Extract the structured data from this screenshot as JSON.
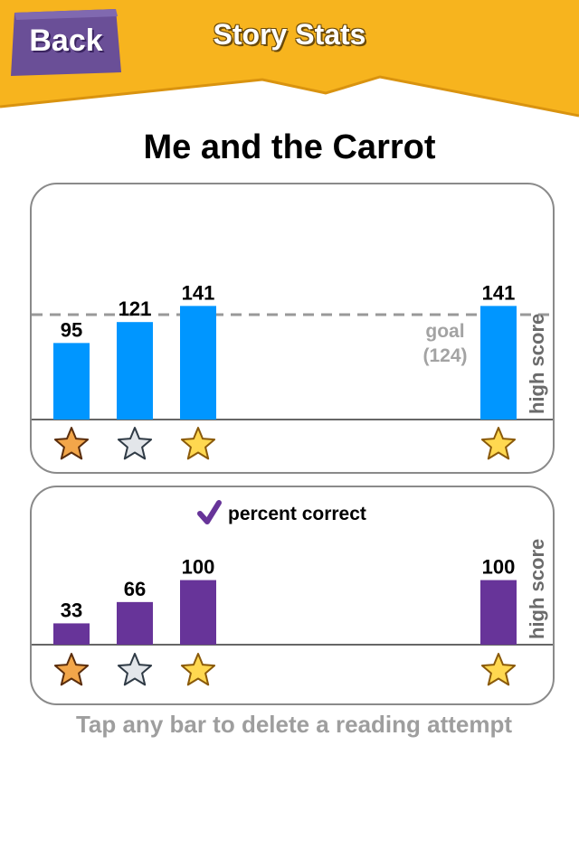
{
  "header": {
    "title": "Story Stats",
    "back_label": "Back",
    "colors": {
      "banner": "#f7b41e",
      "back_button": "#6a4f97"
    }
  },
  "story": {
    "title": "Me and the Carrot"
  },
  "charts": {
    "score": {
      "goal_label": "goal",
      "goal_value_label": "(124)",
      "high_score_label": "high score",
      "color": "#0096ff"
    },
    "percent": {
      "legend_label": "percent correct",
      "legend_icon": "checkmark-icon",
      "high_score_label": "high score",
      "color": "#673499"
    }
  },
  "footer": {
    "hint": "Tap any bar to delete a reading attempt"
  },
  "chart_data": [
    {
      "type": "bar",
      "categories": [
        "bronze",
        "silver",
        "gold",
        "high score"
      ],
      "values": [
        95,
        121,
        141,
        141
      ],
      "labels": [
        "95",
        "121",
        "141",
        "141"
      ],
      "stars": [
        "bronze-star-icon",
        "silver-star-icon",
        "gold-star-icon",
        "gold-star-icon"
      ],
      "goal": 124,
      "ylim": [
        0,
        220
      ]
    },
    {
      "type": "bar",
      "categories": [
        "bronze",
        "silver",
        "gold",
        "high score"
      ],
      "values": [
        33,
        66,
        100,
        100
      ],
      "labels": [
        "33",
        "66",
        "100",
        "100"
      ],
      "stars": [
        "bronze-star-icon",
        "silver-star-icon",
        "gold-star-icon",
        "gold-star-icon"
      ],
      "ylim": [
        0,
        175
      ]
    }
  ]
}
